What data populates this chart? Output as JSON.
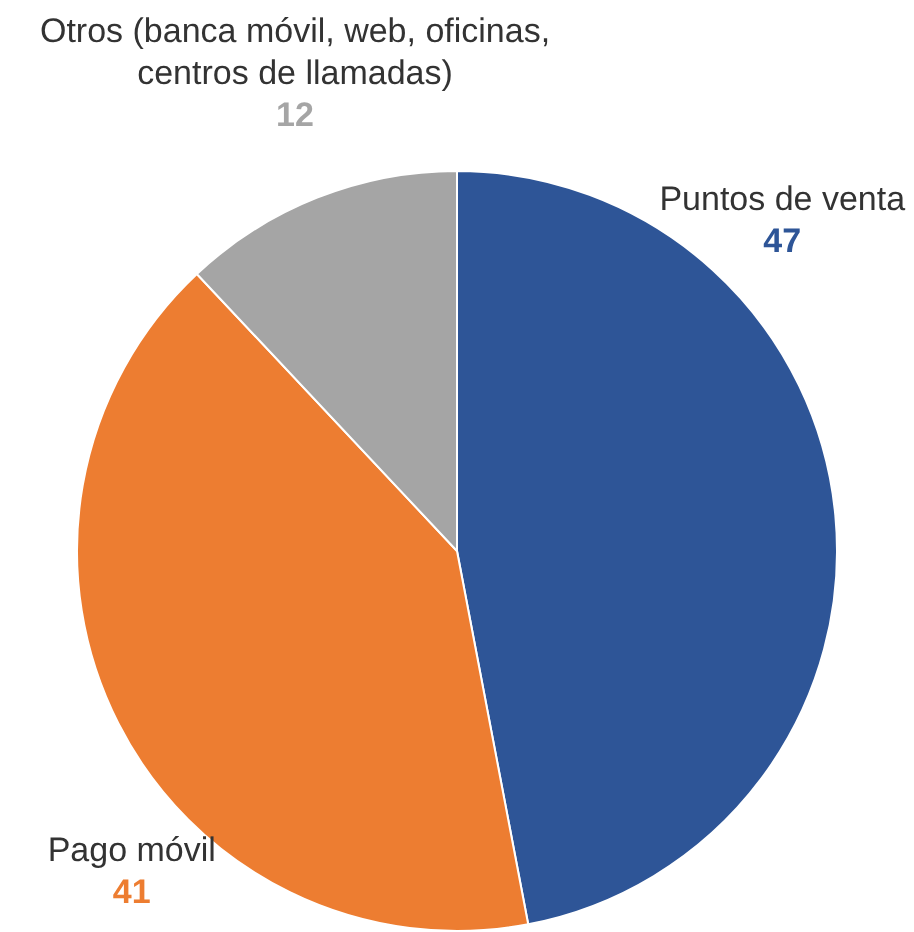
{
  "chart_data": {
    "type": "pie",
    "categories": [
      "Puntos de venta",
      "Pago móvil",
      "Otros (banca móvil, web, oficinas, centros de llamadas)"
    ],
    "values": [
      47,
      41,
      12
    ],
    "colors": [
      "#2e5597",
      "#ed7d31",
      "#a5a5a5"
    ],
    "data_labels": true,
    "legend": false
  }
}
